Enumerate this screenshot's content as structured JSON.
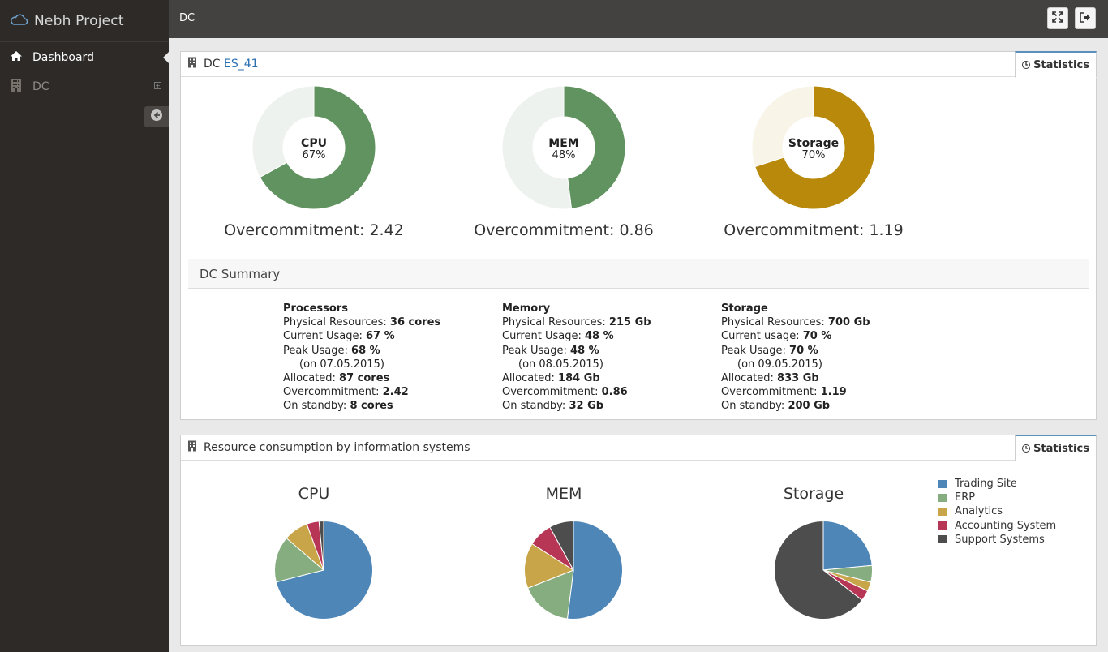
{
  "app": {
    "name": "Nebh Project"
  },
  "sidebar": {
    "items": [
      {
        "label": "Dashboard",
        "active": true
      },
      {
        "label": "DC",
        "active": false
      }
    ]
  },
  "topbar": {
    "title": "DC"
  },
  "panel1": {
    "title_prefix": "DC",
    "title_link": "ES_41",
    "tab_label": "Statistics",
    "donuts": [
      {
        "label": "CPU",
        "percent_text": "67%",
        "value": 67,
        "color": "#60935f",
        "track": "#eef2ee",
        "overcommit": "Overcommitment: 2.42"
      },
      {
        "label": "MEM",
        "percent_text": "48%",
        "value": 48,
        "color": "#60935f",
        "track": "#eef2ee",
        "overcommit": "Overcommitment: 0.86"
      },
      {
        "label": "Storage",
        "percent_text": "70%",
        "value": 70,
        "color": "#b8890a",
        "track": "#f8f4e8",
        "overcommit": "Overcommitment: 1.19"
      }
    ],
    "summary_title": "DC Summary",
    "summary": {
      "processors": {
        "heading": "Processors",
        "phys_label": "Physical Resources: ",
        "phys_value": "36 cores",
        "cur_label": "Current Usage: ",
        "cur_value": "67 %",
        "peak_label": "Peak Usage: ",
        "peak_value": "68 %",
        "peak_date": "(on 07.05.2015)",
        "alloc_label": "Allocated: ",
        "alloc_value": "87 cores",
        "over_label": "Overcommitment: ",
        "over_value": "2.42",
        "standby_label": "On standby: ",
        "standby_value": "8 cores"
      },
      "memory": {
        "heading": "Memory",
        "phys_label": "Physical Resources: ",
        "phys_value": "215 Gb",
        "cur_label": "Current Usage: ",
        "cur_value": "48 %",
        "peak_label": "Peak Usage: ",
        "peak_value": "48 %",
        "peak_date": "(on 08.05.2015)",
        "alloc_label": "Allocated: ",
        "alloc_value": "184 Gb",
        "over_label": "Overcommitment: ",
        "over_value": "0.86",
        "standby_label": "On standby: ",
        "standby_value": "32 Gb"
      },
      "storage": {
        "heading": "Storage",
        "phys_label": "Physical Resources: ",
        "phys_value": "700 Gb",
        "cur_label": "Current usage: ",
        "cur_value": "70 %",
        "peak_label": "Peak Usage: ",
        "peak_value": "70 %",
        "peak_date": "(on 09.05.2015)",
        "alloc_label": "Allocated: ",
        "alloc_value": "833 Gb",
        "over_label": "Overcommitment: ",
        "over_value": "1.19",
        "standby_label": "On standby: ",
        "standby_value": "200 Gb"
      }
    }
  },
  "panel2": {
    "title": "Resource consumption by information systems",
    "tab_label": "Statistics"
  },
  "chart_data": [
    {
      "type": "pie",
      "title": "CPU",
      "categories": [
        "Trading Site",
        "ERP",
        "Analytics",
        "Accounting System",
        "Support Systems"
      ],
      "values": [
        70,
        15,
        8,
        4,
        1.5
      ],
      "colors": [
        "#4e86b8",
        "#86ad80",
        "#c9a54a",
        "#b83655",
        "#4d4d4d"
      ]
    },
    {
      "type": "pie",
      "title": "MEM",
      "categories": [
        "Trading Site",
        "ERP",
        "Analytics",
        "Accounting System",
        "Support Systems"
      ],
      "values": [
        52,
        17,
        15,
        8,
        8
      ],
      "colors": [
        "#4e86b8",
        "#86ad80",
        "#c9a54a",
        "#b83655",
        "#4d4d4d"
      ]
    },
    {
      "type": "pie",
      "title": "Storage",
      "categories": [
        "Trading Site",
        "ERP",
        "Analytics",
        "Accounting System",
        "Support Systems"
      ],
      "values": [
        23.5,
        5.5,
        3,
        3.5,
        64.5
      ],
      "colors": [
        "#4e86b8",
        "#86ad80",
        "#c9a54a",
        "#b83655",
        "#4d4d4d"
      ]
    }
  ],
  "legend": [
    {
      "label": "Trading Site",
      "color": "#4e86b8"
    },
    {
      "label": "ERP",
      "color": "#86ad80"
    },
    {
      "label": "Analytics",
      "color": "#c9a54a"
    },
    {
      "label": "Accounting System",
      "color": "#b83655"
    },
    {
      "label": "Support Systems",
      "color": "#4d4d4d"
    }
  ]
}
